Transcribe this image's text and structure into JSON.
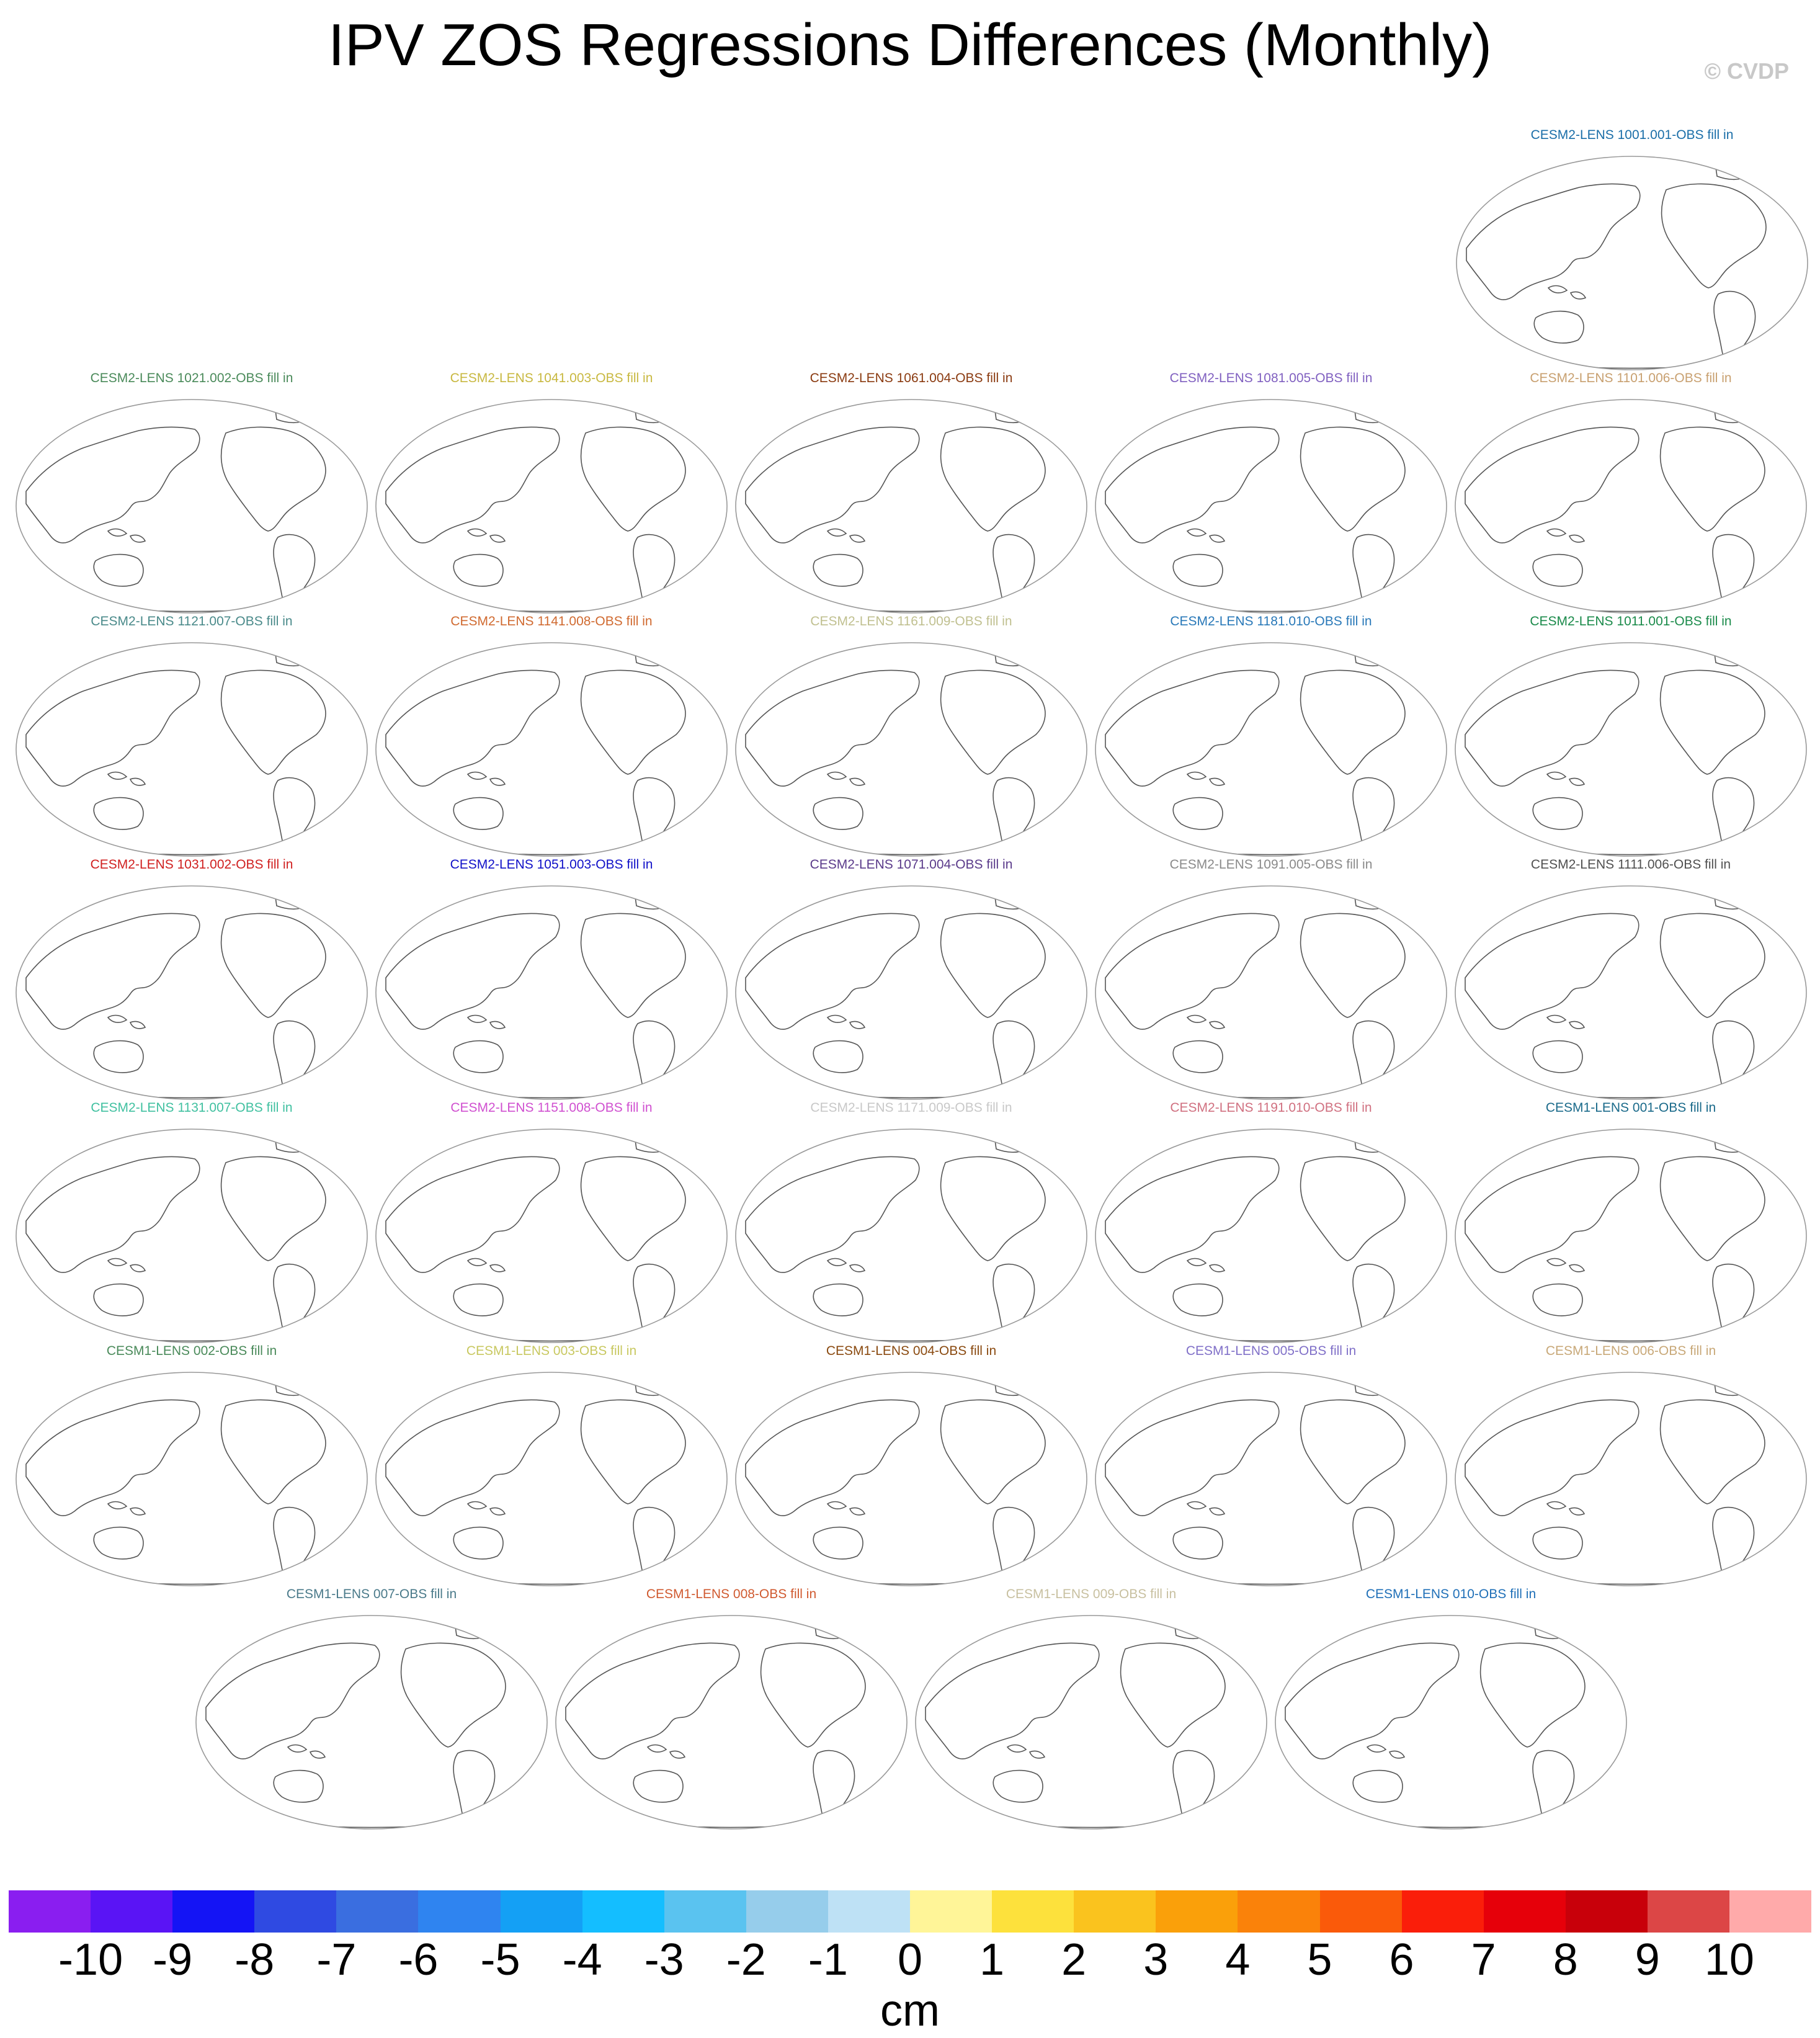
{
  "title": "IPV ZOS Regressions Differences (Monthly)",
  "watermark": "© CVDP",
  "panels": [
    {
      "label": "CESM2-LENS 1001.001-OBS fill in",
      "color": "#1a6ea8"
    },
    {
      "label": "CESM2-LENS 1021.002-OBS fill in",
      "color": "#4a8a5a"
    },
    {
      "label": "CESM2-LENS 1041.003-OBS fill in",
      "color": "#c8b840"
    },
    {
      "label": "CESM2-LENS 1061.004-OBS fill in",
      "color": "#8a3a10"
    },
    {
      "label": "CESM2-LENS 1081.005-OBS fill in",
      "color": "#8060c0"
    },
    {
      "label": "CESM2-LENS 1101.006-OBS fill in",
      "color": "#c8a070"
    },
    {
      "label": "CESM2-LENS 1121.007-OBS fill in",
      "color": "#4a8a8a"
    },
    {
      "label": "CESM2-LENS 1141.008-OBS fill in",
      "color": "#d06a30"
    },
    {
      "label": "CESM2-LENS 1161.009-OBS fill in",
      "color": "#c0c090"
    },
    {
      "label": "CESM2-LENS 1181.010-OBS fill in",
      "color": "#2878b8"
    },
    {
      "label": "CESM2-LENS 1011.001-OBS fill in",
      "color": "#1a8a4a"
    },
    {
      "label": "CESM2-LENS 1031.002-OBS fill in",
      "color": "#d02020"
    },
    {
      "label": "CESM2-LENS 1051.003-OBS fill in",
      "color": "#1010c8"
    },
    {
      "label": "CESM2-LENS 1071.004-OBS fill in",
      "color": "#5a3a8a"
    },
    {
      "label": "CESM2-LENS 1091.005-OBS fill in",
      "color": "#8a8a8a"
    },
    {
      "label": "CESM2-LENS 1111.006-OBS fill in",
      "color": "#505050"
    },
    {
      "label": "CESM2-LENS 1131.007-OBS fill in",
      "color": "#40c0a0"
    },
    {
      "label": "CESM2-LENS 1151.008-OBS fill in",
      "color": "#d050d0"
    },
    {
      "label": "CESM2-LENS 1171.009-OBS fill in",
      "color": "#c8c8c8"
    },
    {
      "label": "CESM2-LENS 1191.010-OBS fill in",
      "color": "#d07080"
    },
    {
      "label": "CESM1-LENS 001-OBS fill in",
      "color": "#1a6a8a"
    },
    {
      "label": "CESM1-LENS 002-OBS fill in",
      "color": "#4a8a5a"
    },
    {
      "label": "CESM1-LENS 003-OBS fill in",
      "color": "#c8c860"
    },
    {
      "label": "CESM1-LENS 004-OBS fill in",
      "color": "#8a4a10"
    },
    {
      "label": "CESM1-LENS 005-OBS fill in",
      "color": "#8070c8"
    },
    {
      "label": "CESM1-LENS 006-OBS fill in",
      "color": "#c8a878"
    },
    {
      "label": "CESM1-LENS 007-OBS fill in",
      "color": "#4a7a8a"
    },
    {
      "label": "CESM1-LENS 008-OBS fill in",
      "color": "#d05a30"
    },
    {
      "label": "CESM1-LENS 009-OBS fill in",
      "color": "#c8c0a0"
    },
    {
      "label": "CESM1-LENS 010-OBS fill in",
      "color": "#2070b8"
    }
  ],
  "colorbar": {
    "units": "cm",
    "colors": [
      "#8a1ef0",
      "#5a14f5",
      "#1414f5",
      "#2f4ae2",
      "#3a6ee0",
      "#2f84f0",
      "#14a0f5",
      "#14beff",
      "#5ac3f0",
      "#96cdeb",
      "#bee1f5",
      "#fff598",
      "#fde13c",
      "#fac31e",
      "#faa00a",
      "#fa820a",
      "#fa5a0a",
      "#fa1e0a",
      "#e6000a",
      "#c8000a",
      "#dc4646",
      "#ffaaaa"
    ],
    "labels": [
      "-10",
      "-9",
      "-8",
      "-7",
      "-6",
      "-5",
      "-4",
      "-3",
      "-2",
      "-1",
      "0",
      "1",
      "2",
      "3",
      "4",
      "5",
      "6",
      "7",
      "8",
      "9",
      "10"
    ]
  }
}
